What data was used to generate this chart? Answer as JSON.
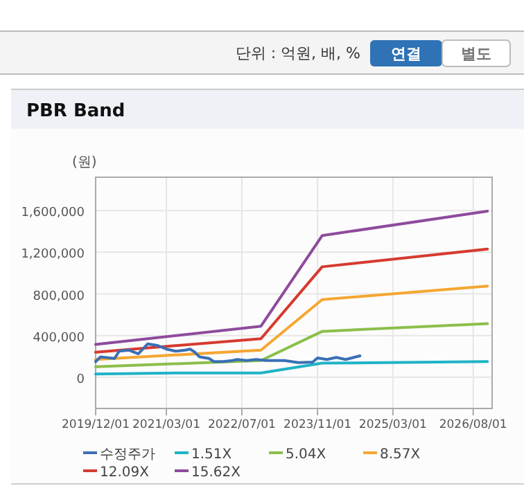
{
  "chart_data": {
    "type": "line",
    "title": "PBR Band",
    "ylabel": "(원)",
    "annotations": [
      "단위 : 억원, 배, %",
      "연결",
      "별도"
    ],
    "xlim": [
      "2019-12-01",
      "2026-12-01"
    ],
    "xticks": [
      {
        "value": "2019-12-01",
        "label": "2019/12/01"
      },
      {
        "value": "2021-03-01",
        "label": "2021/03/01"
      },
      {
        "value": "2022-07-01",
        "label": "2022/07/01"
      },
      {
        "value": "2023-11-01",
        "label": "2023/11/01"
      },
      {
        "value": "2025-03-01",
        "label": "2025/03/01"
      },
      {
        "value": "2026-08-01",
        "label": "2026/08/01"
      }
    ],
    "ylim": [
      -300000,
      1920000
    ],
    "yticks": [
      {
        "value": 0,
        "label": "0"
      },
      {
        "value": 400000,
        "label": "400,000"
      },
      {
        "value": 800000,
        "label": "800,000"
      },
      {
        "value": 1200000,
        "label": "1,200,000"
      },
      {
        "value": 1600000,
        "label": "1,600,000"
      }
    ],
    "grid": true,
    "legend": "bottom",
    "marker": "none",
    "line_style": "solid",
    "series": [
      {
        "name": "수정주가",
        "color": "#3a6fb5",
        "x": [
          "2019-12",
          "2020-01",
          "2020-04",
          "2020-05",
          "2020-07",
          "2020-09",
          "2020-11",
          "2021-01",
          "2021-03",
          "2021-05",
          "2021-07",
          "2021-08",
          "2021-09",
          "2021-10",
          "2021-12",
          "2022-01",
          "2022-03",
          "2022-05",
          "2022-06",
          "2022-08",
          "2022-10",
          "2022-12",
          "2023-02",
          "2023-04",
          "2023-07",
          "2023-10",
          "2023-11",
          "2024-01",
          "2024-03",
          "2024-05",
          "2024-08"
        ],
        "values": [
          150000,
          195000,
          180000,
          250000,
          260000,
          225000,
          320000,
          305000,
          270000,
          250000,
          260000,
          270000,
          240000,
          195000,
          180000,
          150000,
          150000,
          160000,
          170000,
          160000,
          170000,
          160000,
          160000,
          160000,
          140000,
          145000,
          185000,
          170000,
          190000,
          170000,
          205000
        ]
      },
      {
        "name": "1.51X",
        "color": "#1fb3c6",
        "x": [
          "2019-12",
          "2021-05",
          "2022-11",
          "2023-12",
          "2026-11"
        ],
        "values": [
          30000,
          40000,
          40000,
          135000,
          150000
        ]
      },
      {
        "name": "5.04X",
        "color": "#8bbf4b",
        "x": [
          "2019-12",
          "2022-11",
          "2023-12",
          "2026-11"
        ],
        "values": [
          100000,
          160000,
          440000,
          515000
        ]
      },
      {
        "name": "8.57X",
        "color": "#f5a631",
        "x": [
          "2019-12",
          "2022-11",
          "2023-12",
          "2026-11"
        ],
        "values": [
          170000,
          260000,
          745000,
          875000
        ]
      },
      {
        "name": "12.09X",
        "color": "#d63a2f",
        "x": [
          "2019-12",
          "2022-11",
          "2023-12",
          "2026-11"
        ],
        "values": [
          240000,
          370000,
          1060000,
          1230000
        ]
      },
      {
        "name": "15.62X",
        "color": "#8e4b9c",
        "x": [
          "2019-12",
          "2022-11",
          "2023-12",
          "2026-11"
        ],
        "values": [
          315000,
          490000,
          1360000,
          1595000
        ]
      }
    ]
  }
}
